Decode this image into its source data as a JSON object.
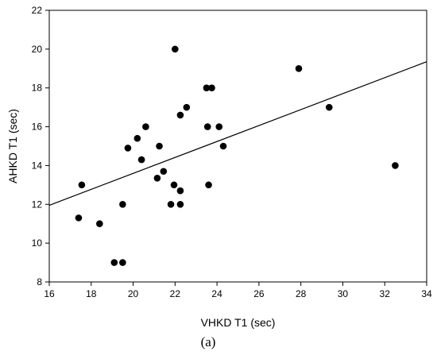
{
  "chart_data": {
    "type": "scatter",
    "title": "",
    "xlabel": "VHKD T1 (sec)",
    "ylabel": "AHKD T1 (sec)",
    "caption": "(a)",
    "xlim": [
      16,
      34
    ],
    "ylim": [
      8,
      22
    ],
    "xticks": [
      "16",
      "18",
      "20",
      "22",
      "24",
      "26",
      "28",
      "30",
      "32",
      "34"
    ],
    "yticks": [
      "8",
      "10",
      "12",
      "14",
      "16",
      "18",
      "20",
      "22"
    ],
    "grid": false,
    "legend": "none",
    "marker_color": "#000000",
    "points": [
      {
        "x": 17.4,
        "y": 11.3
      },
      {
        "x": 17.55,
        "y": 13.0
      },
      {
        "x": 18.4,
        "y": 11.0
      },
      {
        "x": 19.1,
        "y": 9.0
      },
      {
        "x": 19.5,
        "y": 9.0
      },
      {
        "x": 19.5,
        "y": 12.0
      },
      {
        "x": 19.75,
        "y": 14.9
      },
      {
        "x": 20.2,
        "y": 15.4
      },
      {
        "x": 20.4,
        "y": 14.3
      },
      {
        "x": 20.6,
        "y": 16.0
      },
      {
        "x": 21.15,
        "y": 13.35
      },
      {
        "x": 21.25,
        "y": 15.0
      },
      {
        "x": 21.45,
        "y": 13.7
      },
      {
        "x": 21.8,
        "y": 12.0
      },
      {
        "x": 21.95,
        "y": 13.0
      },
      {
        "x": 22.0,
        "y": 20.0
      },
      {
        "x": 22.25,
        "y": 12.7
      },
      {
        "x": 22.25,
        "y": 12.0
      },
      {
        "x": 22.25,
        "y": 16.6
      },
      {
        "x": 22.55,
        "y": 17.0
      },
      {
        "x": 23.5,
        "y": 18.0
      },
      {
        "x": 23.55,
        "y": 16.0
      },
      {
        "x": 23.6,
        "y": 13.0
      },
      {
        "x": 23.75,
        "y": 18.0
      },
      {
        "x": 24.1,
        "y": 16.0
      },
      {
        "x": 24.3,
        "y": 15.0
      },
      {
        "x": 27.9,
        "y": 19.0
      },
      {
        "x": 29.35,
        "y": 17.0
      },
      {
        "x": 32.5,
        "y": 14.0
      }
    ],
    "trendline": {
      "x": [
        16,
        34
      ],
      "y": [
        11.95,
        19.35
      ]
    }
  }
}
